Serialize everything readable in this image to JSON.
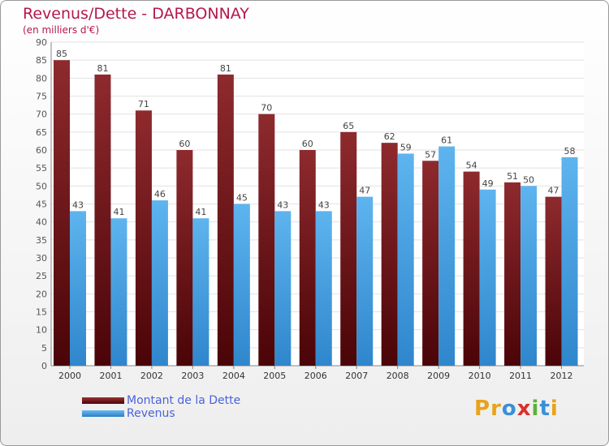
{
  "header": {
    "title": "Revenus/Dette - DARBONNAY",
    "subtitle": "(en milliers d'€)"
  },
  "chart_data": {
    "type": "bar",
    "categories": [
      "2000",
      "2001",
      "2002",
      "2003",
      "2004",
      "2005",
      "2006",
      "2007",
      "2008",
      "2009",
      "2010",
      "2011",
      "2012"
    ],
    "series": [
      {
        "name": "Montant de la Dette",
        "color": "#7b1a1e",
        "values": [
          85,
          81,
          71,
          60,
          81,
          70,
          60,
          65,
          62,
          57,
          54,
          51,
          47
        ]
      },
      {
        "name": "Revenus",
        "color": "#4da6e6",
        "values": [
          43,
          41,
          46,
          41,
          45,
          43,
          43,
          47,
          59,
          61,
          49,
          50,
          58
        ]
      }
    ],
    "ylim": [
      0,
      90
    ],
    "ytick_step": 5,
    "grid": true,
    "data_labels": true,
    "legend_position": "bottom-left"
  },
  "logo": {
    "text": "Proxiti",
    "letter_colors": [
      "#e8a31a",
      "#e8a31a",
      "#3a8fd8",
      "#d9312c",
      "#5db13a",
      "#3a8fd8",
      "#e8a31a"
    ]
  }
}
